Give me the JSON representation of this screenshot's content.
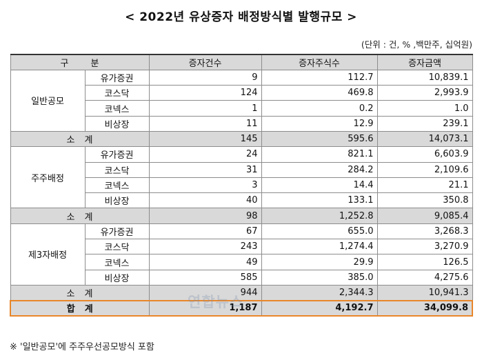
{
  "title": "< 2022년 유상증자 배정방식별 발행규모 >",
  "unit": "(단위 : 건, % ,백만주, 십억원)",
  "headers": [
    "구 분",
    "증자건수",
    "증자주식수",
    "증자금액"
  ],
  "groups": [
    {
      "category": "일반공모",
      "rows": [
        {
          "market": "유가증권",
          "count": "9",
          "shares": "112.7",
          "amount": "10,839.1"
        },
        {
          "market": "코스닥",
          "count": "124",
          "shares": "469.8",
          "amount": "2,993.9"
        },
        {
          "market": "코넥스",
          "count": "1",
          "shares": "0.2",
          "amount": "1.0"
        },
        {
          "market": "비상장",
          "count": "11",
          "shares": "12.9",
          "amount": "239.1"
        }
      ],
      "subtotal": {
        "label": "소계",
        "count": "145",
        "shares": "595.6",
        "amount": "14,073.1"
      }
    },
    {
      "category": "주주배정",
      "rows": [
        {
          "market": "유가증권",
          "count": "24",
          "shares": "821.1",
          "amount": "6,603.9"
        },
        {
          "market": "코스닥",
          "count": "31",
          "shares": "284.2",
          "amount": "2,109.6"
        },
        {
          "market": "코넥스",
          "count": "3",
          "shares": "14.4",
          "amount": "21.1"
        },
        {
          "market": "비상장",
          "count": "40",
          "shares": "133.1",
          "amount": "350.8"
        }
      ],
      "subtotal": {
        "label": "소계",
        "count": "98",
        "shares": "1,252.8",
        "amount": "9,085.4"
      }
    },
    {
      "category": "제3자배정",
      "rows": [
        {
          "market": "유가증권",
          "count": "67",
          "shares": "655.0",
          "amount": "3,268.3"
        },
        {
          "market": "코스닥",
          "count": "243",
          "shares": "1,274.4",
          "amount": "3,270.9"
        },
        {
          "market": "코넥스",
          "count": "49",
          "shares": "29.9",
          "amount": "126.5"
        },
        {
          "market": "비상장",
          "count": "585",
          "shares": "385.0",
          "amount": "4,275.6"
        }
      ],
      "subtotal": {
        "label": "소계",
        "count": "944",
        "shares": "2,344.3",
        "amount": "10,941.3"
      }
    }
  ],
  "total": {
    "label": "합계",
    "count": "1,187",
    "shares": "4,192.7",
    "amount": "34,099.8"
  },
  "note": "※ '일반공모'에 주주우선공모방식 포함",
  "watermark": "연합뉴스"
}
